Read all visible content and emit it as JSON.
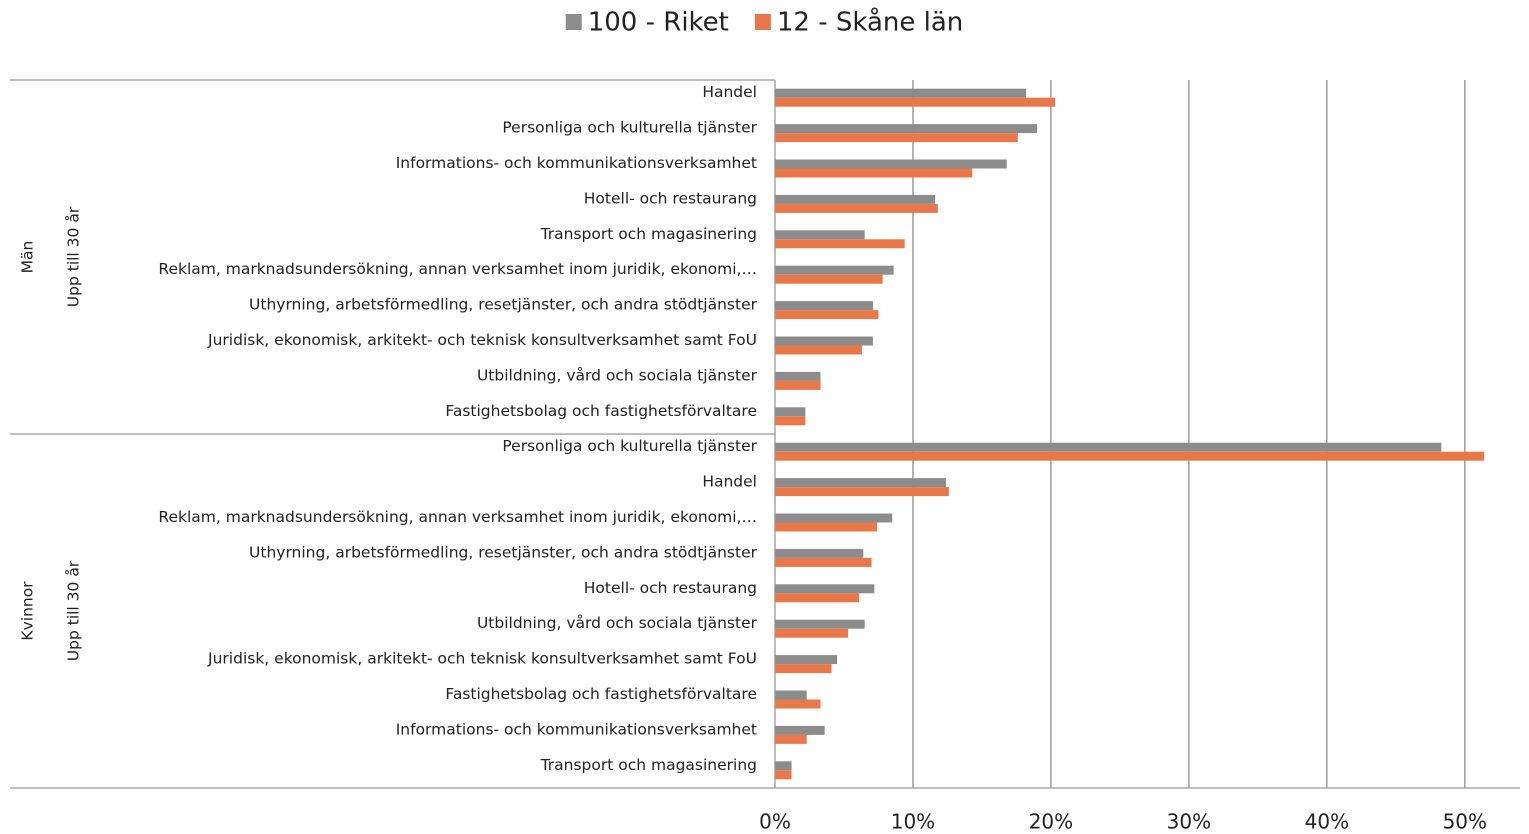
{
  "chart_data": {
    "type": "bar",
    "orientation": "horizontal",
    "categories": [
      "Handel",
      "Personliga och kulturella tjänster",
      "Informations- och kommunikationsverksamhet",
      "Hotell- och restaurang",
      "Transport och magasinering",
      "Reklam, marknadsundersökning, annan verksamhet inom juridik, ekonomi,…",
      "Uthyrning, arbetsförmedling, resetjänster, och andra stödtjänster",
      "Juridisk, ekonomisk, arkitekt- och teknisk konsultverksamhet samt FoU",
      "Utbildning, vård och sociala tjänster",
      "Fastighetsbolag och fastighetsförvaltare",
      "Personliga och kulturella tjänster",
      "Handel",
      "Reklam, marknadsundersökning, annan verksamhet inom juridik, ekonomi,…",
      "Uthyrning, arbetsförmedling, resetjänster, och andra stödtjänster",
      "Hotell- och restaurang",
      "Utbildning, vård och sociala tjänster",
      "Juridisk, ekonomisk, arkitekt- och teknisk konsultverksamhet samt FoU",
      "Fastighetsbolag och fastighetsförvaltare",
      "Informations- och kommunikationsverksamhet",
      "Transport och magasinering"
    ],
    "groups": [
      {
        "name": "Män",
        "subname": "Upp till 30 år"
      },
      {
        "name": "Kvinnor",
        "subname": "Upp till 30 år"
      }
    ],
    "series": [
      {
        "name": "100 - Riket",
        "color": "#8c8c8c",
        "values": [
          18.2,
          19.0,
          16.8,
          11.6,
          6.5,
          8.6,
          7.1,
          7.1,
          3.3,
          2.2,
          48.3,
          12.4,
          8.5,
          6.4,
          7.2,
          6.5,
          4.5,
          2.3,
          3.6,
          1.2
        ]
      },
      {
        "name": "12 - Skåne län",
        "color": "#e8784a",
        "values": [
          20.3,
          17.6,
          14.3,
          11.8,
          9.4,
          7.8,
          7.5,
          6.3,
          3.3,
          2.2,
          51.4,
          12.6,
          7.4,
          7.0,
          6.1,
          5.3,
          4.1,
          3.3,
          2.3,
          1.2
        ]
      }
    ],
    "xlim": [
      0,
      54
    ],
    "xticks": [
      {
        "value": 0,
        "label": "0%"
      },
      {
        "value": 10,
        "label": "10%"
      },
      {
        "value": 20,
        "label": "20%"
      },
      {
        "value": 30,
        "label": "30%"
      },
      {
        "value": 40,
        "label": "40%"
      },
      {
        "value": 50,
        "label": "50%"
      }
    ],
    "grid": true,
    "legend": "top"
  }
}
